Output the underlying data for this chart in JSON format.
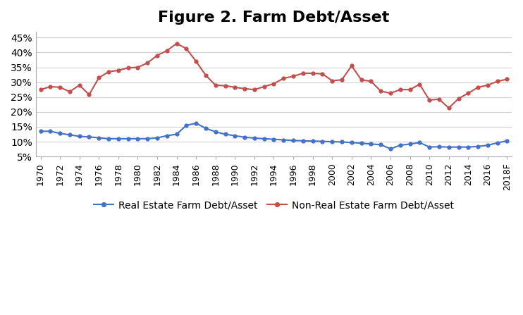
{
  "title": "Figure 2. Farm Debt/Asset",
  "title_fontsize": 16,
  "title_fontweight": "bold",
  "years_x": [
    0,
    1,
    2,
    3,
    4,
    5,
    6,
    7,
    8,
    9,
    10,
    11,
    12,
    13,
    14,
    15,
    16,
    17,
    18,
    19,
    20,
    21,
    22,
    23,
    24,
    25,
    26,
    27,
    28,
    29,
    30,
    31,
    32,
    33,
    34,
    35,
    36,
    37,
    38,
    39,
    40,
    41,
    42,
    43,
    44,
    45,
    46,
    47,
    48
  ],
  "real_estate": [
    0.135,
    0.135,
    0.128,
    0.123,
    0.118,
    0.116,
    0.113,
    0.11,
    0.11,
    0.11,
    0.11,
    0.11,
    0.113,
    0.12,
    0.125,
    0.155,
    0.162,
    0.145,
    0.133,
    0.125,
    0.12,
    0.115,
    0.112,
    0.11,
    0.108,
    0.106,
    0.104,
    0.103,
    0.102,
    0.101,
    0.1,
    0.099,
    0.097,
    0.095,
    0.092,
    0.09,
    0.076,
    0.088,
    0.092,
    0.097,
    0.082,
    0.083,
    0.082,
    0.082,
    0.082,
    0.084,
    0.088,
    0.096,
    0.103
  ],
  "non_real_estate": [
    0.275,
    0.285,
    0.283,
    0.268,
    0.29,
    0.258,
    0.315,
    0.335,
    0.34,
    0.348,
    0.35,
    0.365,
    0.39,
    0.406,
    0.43,
    0.413,
    0.37,
    0.323,
    0.29,
    0.288,
    0.283,
    0.278,
    0.275,
    0.285,
    0.295,
    0.313,
    0.32,
    0.33,
    0.33,
    0.328,
    0.305,
    0.308,
    0.355,
    0.308,
    0.303,
    0.27,
    0.263,
    0.275,
    0.275,
    0.293,
    0.24,
    0.243,
    0.213,
    0.245,
    0.263,
    0.283,
    0.29,
    0.303,
    0.31
  ],
  "real_estate_color": "#4472C4",
  "non_real_estate_color": "#C0504D",
  "marker": "o",
  "marker_size": 3.5,
  "line_width": 1.5,
  "ylim": [
    0.05,
    0.47
  ],
  "yticks": [
    0.05,
    0.1,
    0.15,
    0.2,
    0.25,
    0.3,
    0.35,
    0.4,
    0.45
  ],
  "xtick_labels": [
    "1970",
    "1972",
    "1974",
    "1976",
    "1978",
    "1980",
    "1982",
    "1984",
    "1986",
    "1988",
    "1990",
    "1992",
    "1994",
    "1996",
    "1998",
    "2000",
    "2002",
    "2004",
    "2006",
    "2008",
    "2010",
    "2012",
    "2014",
    "2016",
    "2018F"
  ],
  "legend_real_estate": "Real Estate Farm Debt/Asset",
  "legend_non_real_estate": "Non-Real Estate Farm Debt/Asset",
  "background_color": "#ffffff",
  "grid_color": "#d0d0d0",
  "grid_linewidth": 0.8,
  "spine_color": "#aaaaaa"
}
